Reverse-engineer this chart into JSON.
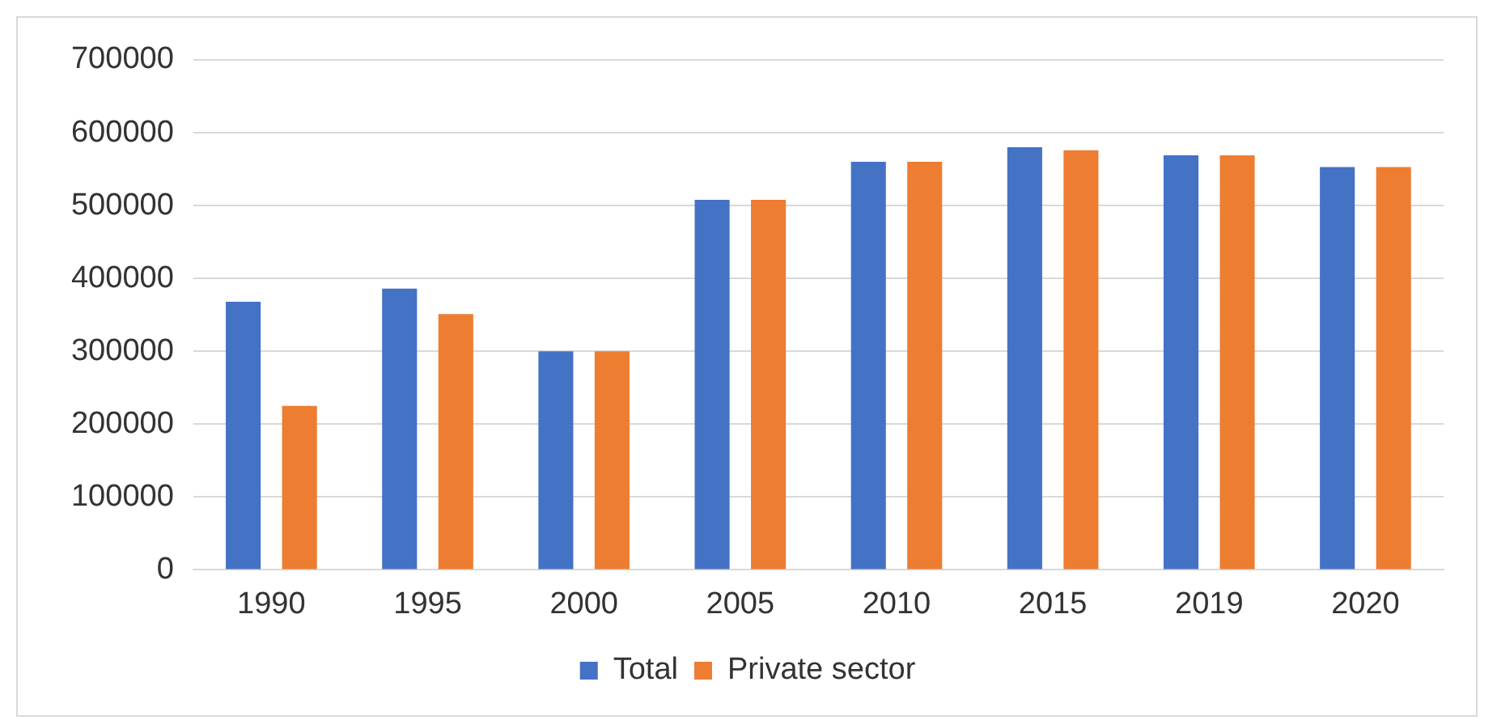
{
  "chart_data": {
    "type": "bar",
    "categories": [
      "1990",
      "1995",
      "2000",
      "2005",
      "2010",
      "2015",
      "2019",
      "2020"
    ],
    "series": [
      {
        "name": "Total",
        "color": "#4472c4",
        "values": [
          368000,
          386000,
          300000,
          508000,
          560000,
          580000,
          569000,
          553000
        ]
      },
      {
        "name": "Private sector",
        "color": "#ed7d31",
        "values": [
          225000,
          351000,
          300000,
          508000,
          560000,
          576000,
          569000,
          553000
        ]
      }
    ],
    "ylim": [
      0,
      700000
    ],
    "yticks": [
      0,
      100000,
      200000,
      300000,
      400000,
      500000,
      600000,
      700000
    ],
    "grid": "y",
    "legend": "bottom"
  }
}
